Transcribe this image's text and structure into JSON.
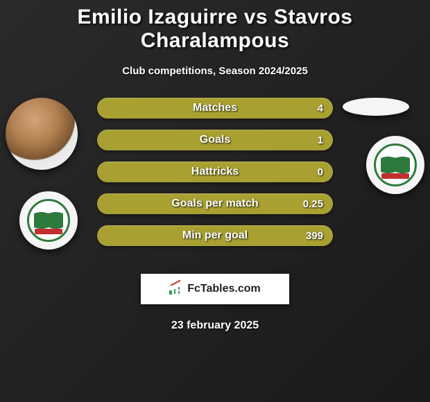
{
  "header": {
    "title": "Emilio Izaguirre vs Stavros Charalampous",
    "subtitle": "Club competitions, Season 2024/2025"
  },
  "stats": {
    "bar_color": "#a8a030",
    "text_color": "#ffffff",
    "rows": [
      {
        "label": "Matches",
        "right": "4"
      },
      {
        "label": "Goals",
        "right": "1"
      },
      {
        "label": "Hattricks",
        "right": "0"
      },
      {
        "label": "Goals per match",
        "right": "0.25"
      },
      {
        "label": "Min per goal",
        "right": "399"
      }
    ]
  },
  "badges": {
    "ring_color": "#2d7a3d",
    "accent_color": "#c03030",
    "background": "#ffffff"
  },
  "brand": {
    "text": "FcTables.com",
    "box_background": "#ffffff",
    "text_color": "#222222"
  },
  "date": "23 february 2025"
}
